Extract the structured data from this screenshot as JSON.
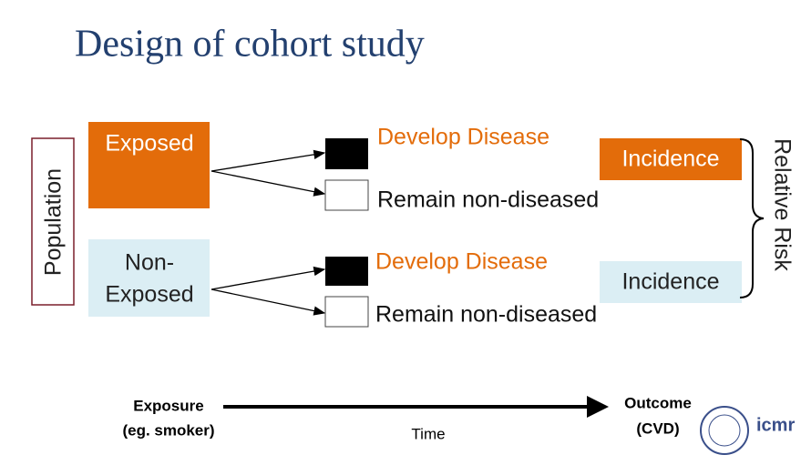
{
  "title": "Design of cohort study",
  "population": "Population",
  "groups": [
    {
      "label_lines": [
        "Exposed"
      ],
      "outcomes": [
        {
          "label": "Develop Disease"
        },
        {
          "label": "Remain non-diseased"
        }
      ],
      "incidence": "Incidence"
    },
    {
      "label_lines": [
        "Non-",
        "Exposed"
      ],
      "outcomes": [
        {
          "label": "Develop Disease"
        },
        {
          "label": "Remain non-diseased"
        }
      ],
      "incidence": "Incidence"
    }
  ],
  "relative_risk": "Relative Risk",
  "timeline": {
    "start_lines": [
      "Exposure",
      "(eg. smoker)"
    ],
    "middle": "Time",
    "end_lines": [
      "Outcome",
      "(CVD)"
    ]
  },
  "logo": "icmr"
}
